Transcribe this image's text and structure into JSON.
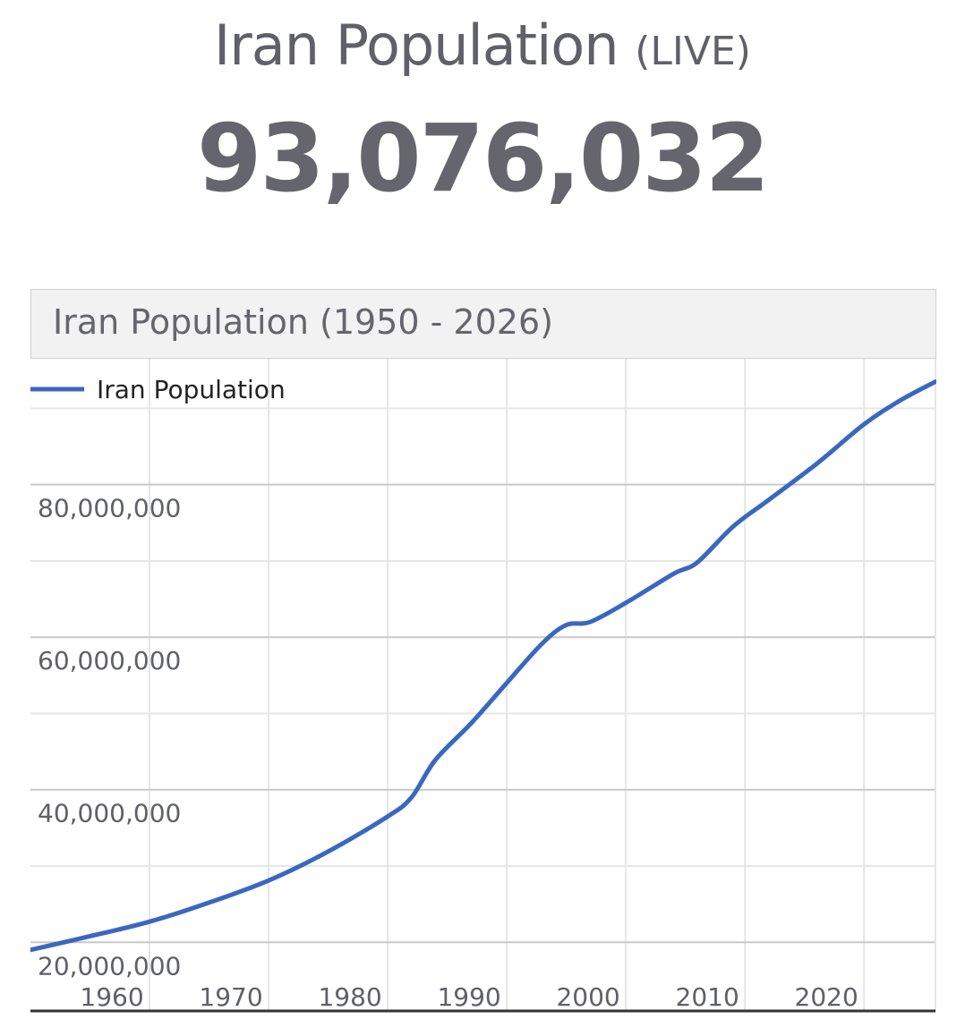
{
  "header": {
    "title": "Iran Population",
    "title_suffix": "(LIVE)",
    "live_count": "93,076,032"
  },
  "chart_card": {
    "title": "Iran Population (1950 - 2026)"
  },
  "colors": {
    "line": "#3a67c0",
    "text": "#5f6068",
    "grid_major": "#c8c8c8",
    "grid_minor": "#e6e6e6"
  },
  "chart_data": {
    "type": "line",
    "title": "Iran Population (1950 - 2026)",
    "xlabel": "",
    "ylabel": "",
    "xlim": [
      1950,
      2026
    ],
    "ylim": [
      11000000,
      96500000
    ],
    "x_ticks": [
      1960,
      1970,
      1980,
      1990,
      2000,
      2010,
      2020
    ],
    "y_ticks": [
      20000000,
      40000000,
      60000000,
      80000000
    ],
    "x_tick_labels": [
      "1960",
      "1970",
      "1980",
      "1990",
      "2000",
      "2010",
      "2020"
    ],
    "y_tick_labels": [
      "20,000,000",
      "40,000,000",
      "60,000,000",
      "80,000,000"
    ],
    "grid": true,
    "legend": "top-left",
    "series": [
      {
        "name": "Iran Population",
        "x": [
          1950,
          1955,
          1960,
          1965,
          1970,
          1975,
          1980,
          1982,
          1984,
          1987,
          1990,
          1993,
          1995,
          1997,
          2000,
          2004,
          2006,
          2009,
          2012,
          2016,
          2020,
          2023,
          2026
        ],
        "y": [
          19000000,
          20800000,
          22700000,
          25200000,
          28100000,
          31900000,
          36500000,
          39000000,
          43900000,
          48700000,
          54000000,
          59200000,
          61600000,
          62000000,
          64500000,
          68300000,
          69800000,
          74500000,
          78000000,
          82700000,
          87900000,
          91000000,
          93500000
        ]
      }
    ]
  }
}
